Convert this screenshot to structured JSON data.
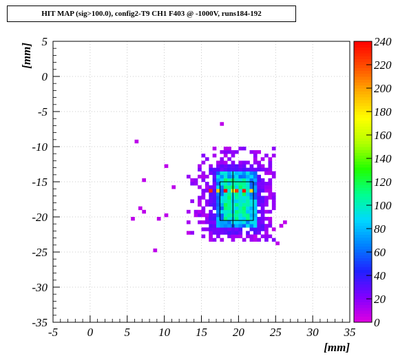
{
  "chart_data": {
    "type": "heatmap",
    "title": "HIT MAP (sig>100.0), config2-T9 CH1 F403 @ -1000V, runs184-192",
    "xlabel": "[mm]",
    "ylabel": "[mm]",
    "xlim": [
      -5,
      35
    ],
    "ylim": [
      -35,
      5
    ],
    "x_ticks": [
      "-5",
      "0",
      "5",
      "10",
      "15",
      "20",
      "25",
      "30",
      "35"
    ],
    "y_ticks": [
      "5",
      "0",
      "-5",
      "-10",
      "-15",
      "-20",
      "-25",
      "-30",
      "-35"
    ],
    "zlim": [
      0,
      240
    ],
    "z_ticks": [
      "0",
      "20",
      "40",
      "60",
      "80",
      "100",
      "120",
      "140",
      "160",
      "180",
      "200",
      "220",
      "240"
    ],
    "grid": true,
    "bin_size_mm": 0.5,
    "colorbar_palette": [
      "#e000e0",
      "#8000ff",
      "#2020ff",
      "#0080ff",
      "#00d8ff",
      "#00ff90",
      "#20ff00",
      "#b0ff00",
      "#ffff00",
      "#ffb000",
      "#ff5000",
      "#ff0000"
    ],
    "core_region": {
      "x_range": [
        17.0,
        22.5
      ],
      "y_range": [
        -21.5,
        -13.5
      ],
      "typical_value": 100
    },
    "halo_region": {
      "x_range": [
        12.0,
        25.0
      ],
      "y_range": [
        -23.5,
        -10.0
      ],
      "typical_value": 10
    },
    "hot_spots": [
      {
        "x": 16.25,
        "y": -16.25,
        "value": 230
      },
      {
        "x": 18.25,
        "y": -16.25,
        "value": 240
      },
      {
        "x": 19.75,
        "y": -16.25,
        "value": 225
      },
      {
        "x": 20.75,
        "y": -16.25,
        "value": 235
      },
      {
        "x": 17.25,
        "y": -16.25,
        "value": 190
      },
      {
        "x": 21.75,
        "y": -16.25,
        "value": 185
      },
      {
        "x": 19.25,
        "y": -16.25,
        "value": 170
      }
    ],
    "outliers": [
      [
        6.25,
        -9.25
      ],
      [
        17.75,
        -6.75
      ],
      [
        10.25,
        -12.75
      ],
      [
        7.25,
        -14.75
      ],
      [
        11.25,
        -15.75
      ],
      [
        6.75,
        -18.75
      ],
      [
        7.25,
        -19.25
      ],
      [
        5.75,
        -20.25
      ],
      [
        9.25,
        -20.25
      ],
      [
        10.25,
        -19.75
      ],
      [
        8.75,
        -24.75
      ],
      [
        25.25,
        -23.75
      ],
      [
        26.25,
        -20.75
      ],
      [
        25.75,
        -21.25
      ],
      [
        24.75,
        -21.75
      ],
      [
        13.25,
        -22.25
      ],
      [
        22.25,
        -22.75
      ]
    ],
    "frame_box": {
      "x_range": [
        17.5,
        22.0
      ],
      "y_range": [
        -20.5,
        -15.0
      ]
    }
  }
}
